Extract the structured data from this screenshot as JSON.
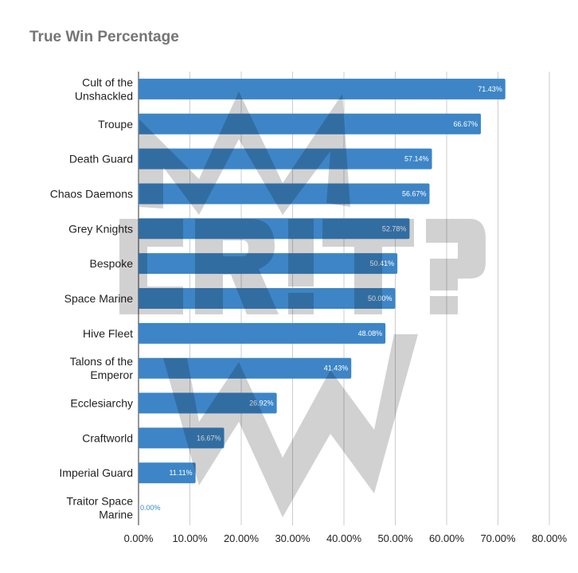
{
  "chart_data": {
    "type": "bar",
    "orientation": "horizontal",
    "title": "True Win Percentage",
    "categories": [
      "Cult of the Unshackled",
      "Troupe",
      "Death Guard",
      "Chaos Daemons",
      "Grey Knights",
      "Bespoke",
      "Space Marine",
      "Hive Fleet",
      "Talons of the Emperor",
      "Ecclesiarchy",
      "Craftworld",
      "Imperial Guard",
      "Traitor Space Marine"
    ],
    "category_lines": [
      [
        "Cult of the",
        "Unshackled"
      ],
      [
        "Troupe"
      ],
      [
        "Death Guard"
      ],
      [
        "Chaos Daemons"
      ],
      [
        "Grey Knights"
      ],
      [
        "Bespoke"
      ],
      [
        "Space Marine"
      ],
      [
        "Hive Fleet"
      ],
      [
        "Talons of the",
        "Emperor"
      ],
      [
        "Ecclesiarchy"
      ],
      [
        "Craftworld"
      ],
      [
        "Imperial Guard"
      ],
      [
        "Traitor Space",
        "Marine"
      ]
    ],
    "values": [
      71.43,
      66.67,
      57.14,
      56.67,
      52.78,
      50.41,
      50.0,
      48.08,
      41.43,
      26.92,
      16.67,
      11.11,
      0.0
    ],
    "data_labels": [
      "71.43%",
      "66.67%",
      "57.14%",
      "56.67%",
      "52.78%",
      "50.41%",
      "50.00%",
      "48.08%",
      "41.43%",
      "26.92%",
      "16.67%",
      "11.11%",
      "0.00%"
    ],
    "x_ticks": [
      0,
      10,
      20,
      30,
      40,
      50,
      60,
      70,
      80
    ],
    "x_tick_labels": [
      "0.00%",
      "10.00%",
      "20.00%",
      "30.00%",
      "40.00%",
      "50.00%",
      "60.00%",
      "70.00%",
      "80.00%"
    ],
    "xlim": [
      0,
      80
    ],
    "xlabel": "",
    "ylabel": "",
    "grid": "vertical",
    "legend": "none",
    "bar_color": "#3d85c6",
    "grid_color": "#cccccc"
  },
  "watermark": {
    "text": "CRIT?",
    "color": "#9e9e9e"
  }
}
